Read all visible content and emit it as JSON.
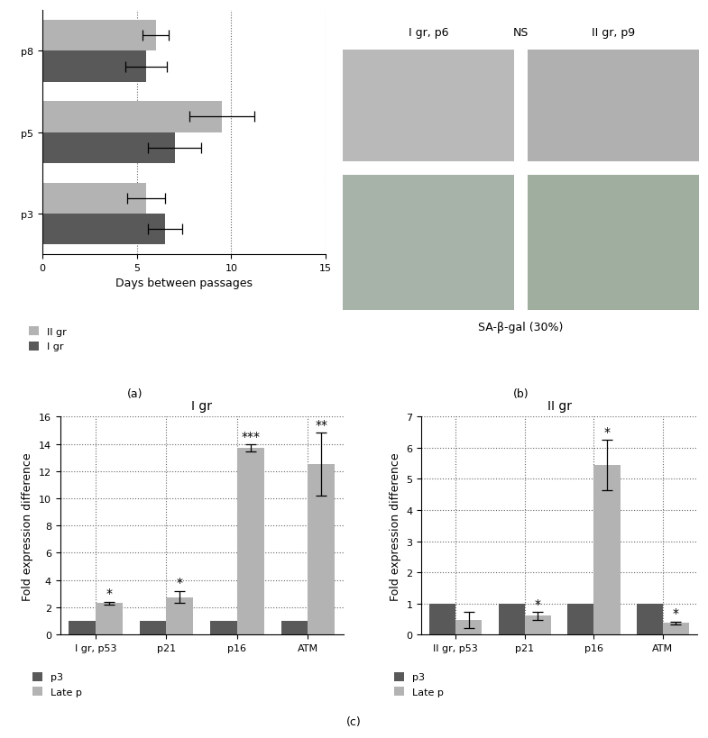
{
  "panel_labels": [
    "(a)",
    "(b)",
    "(c)"
  ],
  "panel_b": {
    "labels": [
      "I gr, p6",
      "II gr, p9"
    ],
    "center_label": "NS",
    "caption": "SA-β-gal (30%)"
  },
  "chart_data": [
    {
      "type": "bar",
      "orientation": "horizontal",
      "categories": [
        "p3",
        "p5",
        "p8"
      ],
      "series": [
        {
          "name": "II gr",
          "color": "#b3b3b3",
          "values": [
            5.5,
            9.5,
            6.0
          ],
          "errors": [
            1.0,
            1.7,
            0.7
          ]
        },
        {
          "name": "I gr",
          "color": "#595959",
          "values": [
            6.5,
            7.0,
            5.5
          ],
          "errors": [
            0.9,
            1.4,
            1.1
          ]
        }
      ],
      "x_label": "Days between passages",
      "xlim": [
        0,
        15
      ],
      "xticks": [
        0,
        5,
        10,
        15
      ],
      "grid": true,
      "legend": "upper left"
    },
    {
      "type": "bar",
      "title": "I gr",
      "categories": [
        "I gr, p53",
        "p21",
        "p16",
        "ATM"
      ],
      "series": [
        {
          "name": "p3",
          "color": "#595959",
          "values": [
            1,
            1,
            1,
            1
          ]
        },
        {
          "name": "Late p",
          "color": "#b3b3b3",
          "values": [
            2.3,
            2.75,
            13.7,
            12.5
          ],
          "errors": [
            0.1,
            0.45,
            0.25,
            2.3
          ],
          "annotations": [
            "*",
            "*",
            "***",
            "**"
          ]
        }
      ],
      "y_label": "Fold expression difference",
      "ylim": [
        0,
        16
      ],
      "yticks": [
        0,
        2,
        4,
        6,
        8,
        10,
        12,
        14,
        16
      ],
      "grid": true,
      "legend": "upper left"
    },
    {
      "type": "bar",
      "title": "II gr",
      "categories": [
        "II gr, p53",
        "p21",
        "p16",
        "ATM"
      ],
      "series": [
        {
          "name": "p3",
          "color": "#595959",
          "values": [
            1,
            1,
            1,
            1
          ]
        },
        {
          "name": "Late p",
          "color": "#b3b3b3",
          "values": [
            0.47,
            0.6,
            5.45,
            0.37
          ],
          "errors": [
            0.25,
            0.12,
            0.8,
            0.05
          ],
          "annotations": [
            null,
            "*",
            "*",
            "*"
          ]
        }
      ],
      "y_label": "Fold expression difference",
      "ylim": [
        0,
        7
      ],
      "yticks": [
        0,
        1,
        2,
        3,
        4,
        5,
        6,
        7
      ],
      "grid": true,
      "legend": "upper left"
    }
  ]
}
